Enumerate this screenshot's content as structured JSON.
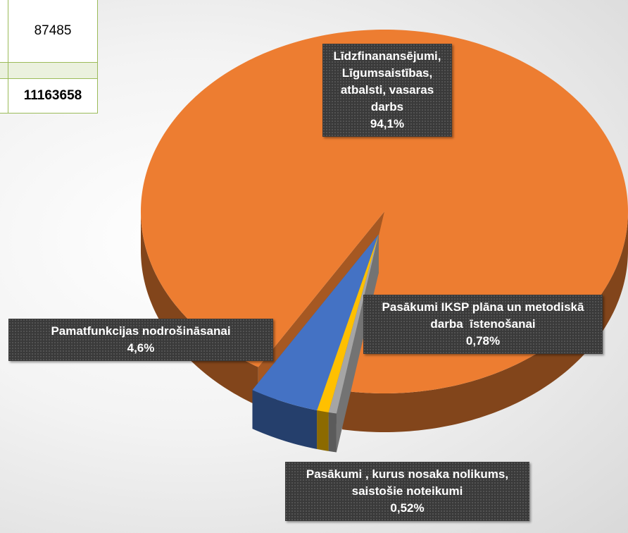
{
  "table": {
    "rows": [
      87485,
      11163658
    ]
  },
  "chart_data": {
    "type": "pie",
    "categories": [
      "Līdzfinanansējumi, Līgumsaistības, atbalsti, vasaras darbs",
      "Pamatfunkcijas nodrošināsanai",
      "Pasākumi IKSP plāna un metodiskā darba  īstenošanai",
      "Pasākumi , kurus nosaka nolikums, saistošie noteikumi"
    ],
    "values": [
      94.1,
      4.6,
      0.78,
      0.52
    ],
    "value_labels": [
      "94,1%",
      "4,6%",
      "0,78%",
      "0,52%"
    ],
    "colors": [
      "#ed7d31",
      "#4472c4",
      "#ffc000",
      "#a5a5a5"
    ]
  }
}
